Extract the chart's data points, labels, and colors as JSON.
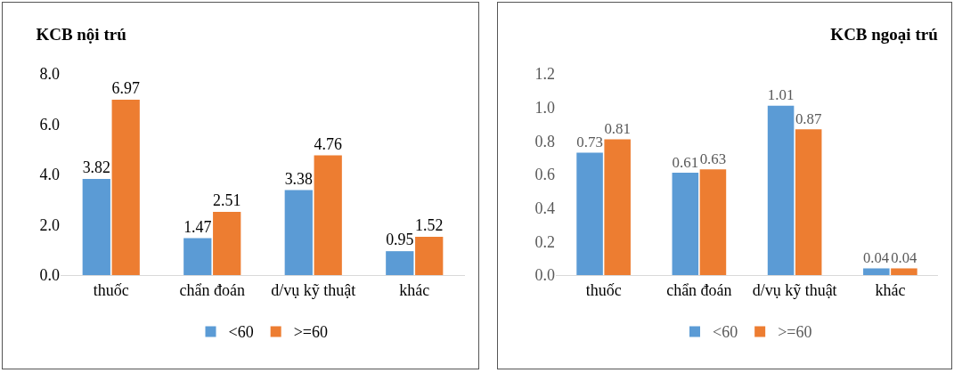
{
  "chart_data": [
    {
      "type": "bar",
      "title": "KCB nội trú",
      "categories": [
        "thuốc",
        "chẩn đoán",
        "d/vụ kỹ thuật",
        "khác"
      ],
      "series": [
        {
          "name": "<60",
          "color": "#5b9bd5",
          "values": [
            3.82,
            1.47,
            3.38,
            0.95
          ]
        },
        {
          "name": ">=60",
          "color": "#ed7d31",
          "values": [
            6.97,
            2.51,
            4.76,
            1.52
          ]
        }
      ],
      "ylim": [
        0,
        8
      ],
      "yticks": [
        {
          "value": 0,
          "label": "0.0"
        },
        {
          "value": 2,
          "label": "2.0"
        },
        {
          "value": 4,
          "label": "4.0"
        },
        {
          "value": 6,
          "label": "6.0"
        },
        {
          "value": 8,
          "label": "8.0"
        }
      ],
      "data_labels": true,
      "grid": false,
      "legend": "bottom"
    },
    {
      "type": "bar",
      "title": "KCB ngoại trú",
      "categories": [
        "thuốc",
        "chẩn đoán",
        "d/vụ kỹ thuật",
        "khác"
      ],
      "series": [
        {
          "name": "<60",
          "color": "#5b9bd5",
          "values": [
            0.73,
            0.61,
            1.01,
            0.04
          ]
        },
        {
          "name": ">=60",
          "color": "#ed7d31",
          "values": [
            0.81,
            0.63,
            0.87,
            0.04
          ]
        }
      ],
      "ylim": [
        0,
        1.2
      ],
      "yticks": [
        {
          "value": 0,
          "label": "0.0"
        },
        {
          "value": 0.2,
          "label": "0.2"
        },
        {
          "value": 0.4,
          "label": "0.4"
        },
        {
          "value": 0.6,
          "label": "0.6"
        },
        {
          "value": 0.8,
          "label": "0.8"
        },
        {
          "value": 1,
          "label": "1.0"
        },
        {
          "value": 1.2,
          "label": "1.2"
        }
      ],
      "data_labels": true,
      "grid": false,
      "legend": "bottom"
    }
  ]
}
